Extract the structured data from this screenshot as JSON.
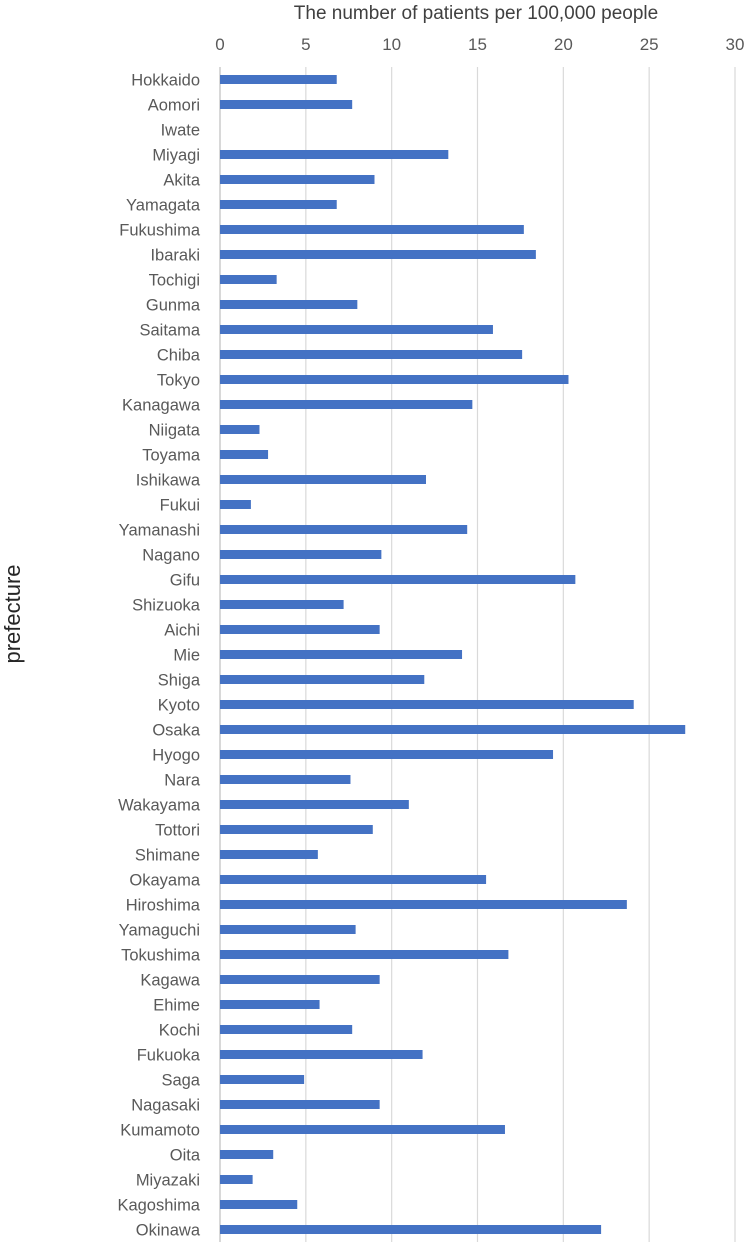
{
  "chart_data": {
    "type": "bar",
    "orientation": "horizontal",
    "xlabel": "The number of patients per 100,000 people",
    "ylabel": "prefecture",
    "xlim": [
      0,
      30
    ],
    "xticks": [
      "0",
      "5",
      "10",
      "15",
      "20",
      "25",
      "30"
    ],
    "grid": true,
    "bar_color": "#4472C4",
    "categories": [
      "Hokkaido",
      "Aomori",
      "Iwate",
      "Miyagi",
      "Akita",
      "Yamagata",
      "Fukushima",
      "Ibaraki",
      "Tochigi",
      "Gunma",
      "Saitama",
      "Chiba",
      "Tokyo",
      "Kanagawa",
      "Niigata",
      "Toyama",
      "Ishikawa",
      "Fukui",
      "Yamanashi",
      "Nagano",
      "Gifu",
      "Shizuoka",
      "Aichi",
      "Mie",
      "Shiga",
      "Kyoto",
      "Osaka",
      "Hyogo",
      "Nara",
      "Wakayama",
      "Tottori",
      "Shimane",
      "Okayama",
      "Hiroshima",
      "Yamaguchi",
      "Tokushima",
      "Kagawa",
      "Ehime",
      "Kochi",
      "Fukuoka",
      "Saga",
      "Nagasaki",
      "Kumamoto",
      "Oita",
      "Miyazaki",
      "Kagoshima",
      "Okinawa"
    ],
    "values": [
      6.8,
      7.7,
      0,
      13.3,
      9.0,
      6.8,
      17.7,
      18.4,
      3.3,
      8.0,
      15.9,
      17.6,
      20.3,
      14.7,
      2.3,
      2.8,
      12.0,
      1.8,
      14.4,
      9.4,
      20.7,
      7.2,
      9.3,
      14.1,
      11.9,
      24.1,
      27.1,
      19.4,
      7.6,
      11.0,
      8.9,
      5.7,
      15.5,
      23.7,
      7.9,
      16.8,
      9.3,
      5.8,
      7.7,
      11.8,
      4.9,
      9.3,
      16.6,
      3.1,
      1.9,
      4.5,
      22.2
    ]
  }
}
